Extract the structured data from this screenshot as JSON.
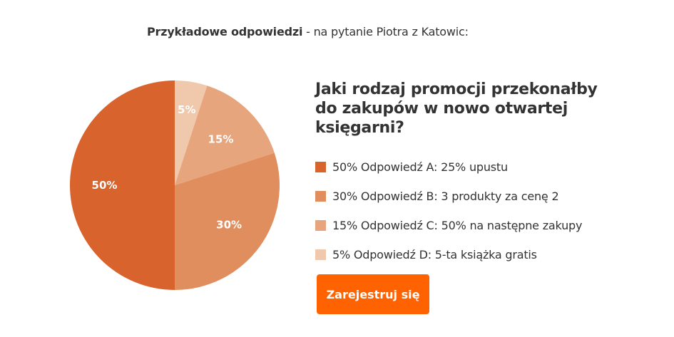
{
  "intro": {
    "strong": "Przykładowe odpowiedzi",
    "rest": " - na pytanie Piotra z Katowic:"
  },
  "question": "Jaki rodzaj promocji przekonałby do zakupów w nowo otwartej księgarni?",
  "chart_data": {
    "type": "pie",
    "title": "Jaki rodzaj promocji przekonałby do zakupów w nowo otwartej księgarni?",
    "slices": [
      {
        "label": "50%",
        "value": 50,
        "legend": "50% Odpowiedź A: 25% upustu",
        "color": "#d8632d"
      },
      {
        "label": "30%",
        "value": 30,
        "legend": "30% Odpowiedź B: 3 produkty za cenę 2",
        "color": "#e08e5e"
      },
      {
        "label": "15%",
        "value": 15,
        "legend": "15% Odpowiedź C: 50% na następne zakupy",
        "color": "#e7a57e"
      },
      {
        "label": "5%",
        "value": 5,
        "legend": "5% Odpowiedź D: 5-ta książka gratis",
        "color": "#f0c8ab"
      }
    ],
    "legend_position": "right"
  },
  "cta": {
    "label": "Zarejestruj się",
    "color": "#ff6200"
  }
}
